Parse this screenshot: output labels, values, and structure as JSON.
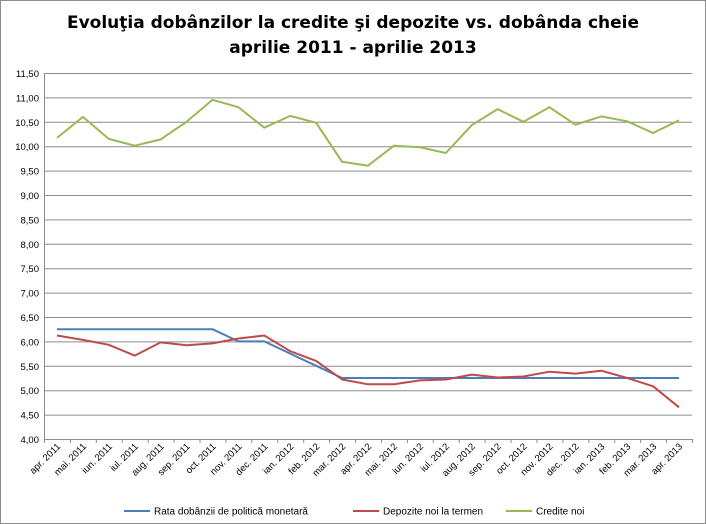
{
  "chart_data": {
    "type": "line",
    "title_line1": "Evoluţia dobânzilor la credite şi depozite vs. dobânda cheie",
    "title_line2": "aprilie 2011  - aprilie 2013",
    "xlabel": "",
    "ylabel": "",
    "ylim": [
      4.0,
      11.5
    ],
    "ystep": 0.5,
    "grid": true,
    "legend_position": "bottom",
    "y_tick_labels": [
      "4,00",
      "4,50",
      "5,00",
      "5,50",
      "6,00",
      "6,50",
      "7,00",
      "7,50",
      "8,00",
      "8,50",
      "9,00",
      "9,50",
      "10,00",
      "10,50",
      "11,00",
      "11,50"
    ],
    "categories": [
      "apr. 2011",
      "mai. 2011",
      "iun. 2011",
      "iul. 2011",
      "aug. 2011",
      "sep. 2011",
      "oct. 2011",
      "nov. 2011",
      "dec. 2011",
      "ian. 2012",
      "feb. 2012",
      "mar. 2012",
      "apr. 2012",
      "mai. 2012",
      "iun. 2012",
      "iul. 2012",
      "aug. 2012",
      "sep. 2012",
      "oct. 2012",
      "nov. 2012",
      "dec. 2012",
      "ian. 2013",
      "feb. 2013",
      "mar. 2013",
      "apr. 2013"
    ],
    "series": [
      {
        "name": "Rata dobânzii de politică monetară",
        "color": "#4a7ebb",
        "values": [
          6.25,
          6.25,
          6.25,
          6.25,
          6.25,
          6.25,
          6.25,
          6.0,
          6.0,
          5.75,
          5.5,
          5.25,
          5.25,
          5.25,
          5.25,
          5.25,
          5.25,
          5.25,
          5.25,
          5.25,
          5.25,
          5.25,
          5.25,
          5.25,
          5.25
        ]
      },
      {
        "name": "Depozite noi la termen",
        "color": "#be4b48",
        "values": [
          6.12,
          6.03,
          5.93,
          5.71,
          5.98,
          5.92,
          5.96,
          6.06,
          6.12,
          5.8,
          5.6,
          5.22,
          5.12,
          5.12,
          5.2,
          5.22,
          5.32,
          5.26,
          5.28,
          5.38,
          5.34,
          5.4,
          5.25,
          5.08,
          4.65
        ]
      },
      {
        "name": "Credite noi",
        "color": "#98b954",
        "values": [
          10.17,
          10.6,
          10.15,
          10.01,
          10.14,
          10.5,
          10.95,
          10.8,
          10.38,
          10.62,
          10.48,
          9.68,
          9.6,
          10.01,
          9.98,
          9.86,
          10.43,
          10.76,
          10.5,
          10.8,
          10.44,
          10.61,
          10.51,
          10.27,
          10.53
        ]
      }
    ]
  }
}
